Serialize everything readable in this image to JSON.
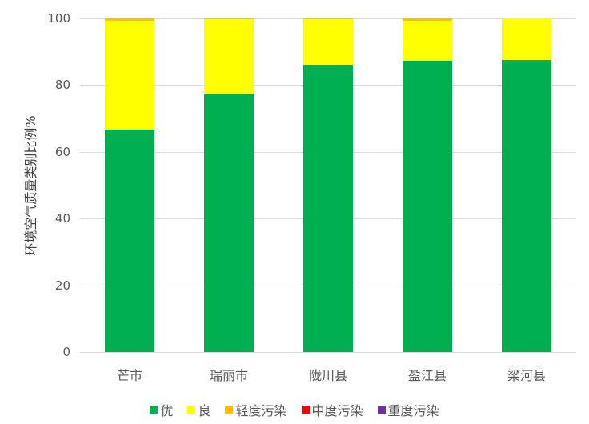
{
  "chart_data": {
    "type": "bar",
    "stacked": true,
    "title": "",
    "xlabel": "",
    "ylabel": "环境空气质量类别比例%",
    "ylim": [
      0,
      100
    ],
    "yticks": [
      0,
      20,
      40,
      60,
      80,
      100
    ],
    "grid": true,
    "legend_position": "bottom",
    "categories": [
      "芒市",
      "瑞丽市",
      "陇川县",
      "盈江县",
      "梁河县"
    ],
    "series": [
      {
        "name": "优",
        "color": "#00b050",
        "values": [
          66.7,
          77.3,
          86.1,
          87.3,
          87.5
        ]
      },
      {
        "name": "良",
        "color": "#ffff00",
        "values": [
          32.5,
          22.4,
          13.8,
          12.0,
          12.5
        ]
      },
      {
        "name": "轻度污染",
        "color": "#ffc000",
        "values": [
          0.8,
          0.3,
          0.1,
          0.7,
          0.0
        ]
      },
      {
        "name": "中度污染",
        "color": "#ff0000",
        "values": [
          0,
          0,
          0,
          0,
          0
        ]
      },
      {
        "name": "重度污染",
        "color": "#7030a0",
        "values": [
          0,
          0,
          0,
          0,
          0
        ]
      }
    ]
  }
}
